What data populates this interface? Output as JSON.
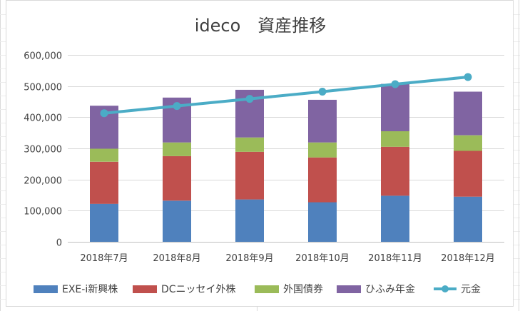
{
  "chart_data": {
    "type": "bar",
    "stacked": true,
    "title": "ideco　資産推移",
    "categories": [
      "2018年7月",
      "2018年8月",
      "2018年9月",
      "2018年10月",
      "2018年11月",
      "2018年12月"
    ],
    "series": [
      {
        "name": "EXE-i新興株",
        "type": "bar",
        "color": "#4f81bd",
        "values": [
          122000,
          132000,
          136000,
          127000,
          148000,
          145000
        ]
      },
      {
        "name": "DCニッセイ外株",
        "type": "bar",
        "color": "#c0504d",
        "values": [
          135000,
          143000,
          153000,
          144000,
          157000,
          147000
        ]
      },
      {
        "name": "外国債券",
        "type": "bar",
        "color": "#9bbb59",
        "values": [
          42000,
          44000,
          46000,
          48000,
          50000,
          50000
        ]
      },
      {
        "name": "ひふみ年金",
        "type": "bar",
        "color": "#8064a2",
        "values": [
          138000,
          144000,
          153000,
          137000,
          152000,
          140000
        ]
      },
      {
        "name": "元金",
        "type": "line",
        "color": "#4bacc6",
        "values": [
          413000,
          436000,
          459000,
          482000,
          506000,
          529000
        ]
      }
    ],
    "yticks": [
      "600,000",
      "500,000",
      "400,000",
      "300,000",
      "200,000",
      "100,000",
      "0"
    ],
    "ylim": [
      0,
      600000
    ],
    "xlabel": "",
    "ylabel": "",
    "grid": true,
    "legend": "bottom"
  }
}
